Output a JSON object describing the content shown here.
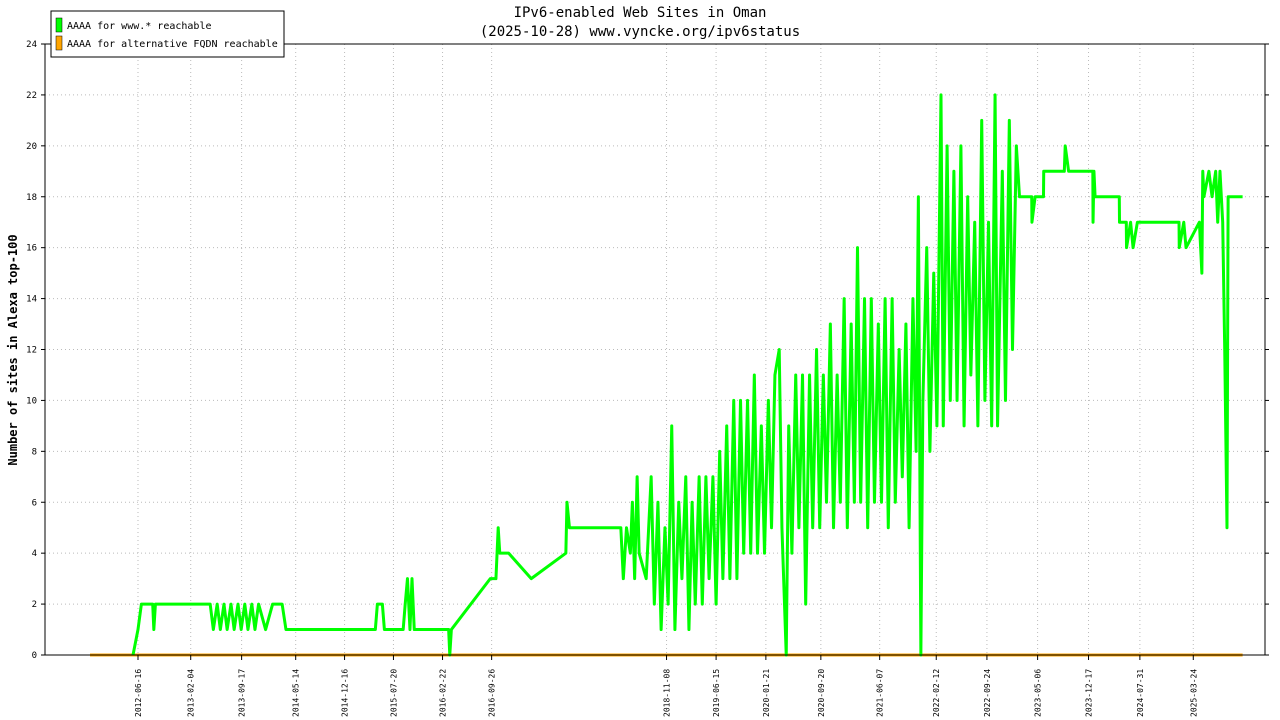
{
  "chart_data": {
    "type": "line",
    "title": "IPv6-enabled Web Sites in Oman",
    "subtitle": "(2025-10-28) www.vyncke.org/ipv6status",
    "y_label": "Number of sites in Alexa top-100",
    "legend": "upper left",
    "grid": true,
    "xlim": [
      "2011-05-02",
      "2026-02-04"
    ],
    "xticks": [
      "2012-06-16",
      "2013-02-04",
      "2013-09-17",
      "2014-05-14",
      "2014-12-16",
      "2015-07-20",
      "2016-02-22",
      "2016-09-26",
      "2018-11-08",
      "2019-06-15",
      "2020-01-21",
      "2020-09-20",
      "2021-06-07",
      "2022-02-12",
      "2022-09-24",
      "2023-05-06",
      "2023-12-17",
      "2024-07-31",
      "2025-03-24"
    ],
    "ylim": [
      0,
      24
    ],
    "yticks": [
      0,
      2,
      4,
      6,
      8,
      10,
      12,
      14,
      16,
      18,
      20,
      22,
      24
    ],
    "series": [
      {
        "name": "AAAA for www.* reachable",
        "color": "#00ff00",
        "x": [
          "2012-05-25",
          "2012-06-16",
          "2012-07-01",
          "2012-08-20",
          "2012-08-25",
          "2012-09-01",
          "2013-05-01",
          "2013-05-15",
          "2013-06-01",
          "2013-06-15",
          "2013-07-01",
          "2013-07-15",
          "2013-08-01",
          "2013-08-15",
          "2013-09-01",
          "2013-09-15",
          "2013-10-01",
          "2013-10-15",
          "2013-11-01",
          "2013-11-15",
          "2013-12-01",
          "2014-01-01",
          "2014-02-01",
          "2014-03-15",
          "2014-04-01",
          "2015-05-01",
          "2015-05-10",
          "2015-06-01",
          "2015-06-10",
          "2015-09-01",
          "2015-09-10",
          "2015-09-20",
          "2015-10-01",
          "2015-10-10",
          "2015-10-20",
          "2016-03-20",
          "2016-03-25",
          "2016-04-01",
          "2016-09-20",
          "2016-10-15",
          "2016-10-25",
          "2016-11-01",
          "2016-12-10",
          "2017-03-20",
          "2017-08-20",
          "2017-08-25",
          "2017-09-05",
          "2018-04-20",
          "2018-05-01",
          "2018-05-15",
          "2018-06-01",
          "2018-06-10",
          "2018-06-20",
          "2018-07-01",
          "2018-07-10",
          "2018-08-10",
          "2018-09-01",
          "2018-09-15",
          "2018-10-01",
          "2018-10-15",
          "2018-11-01",
          "2018-11-15",
          "2018-12-01",
          "2018-12-15",
          "2019-01-01",
          "2019-01-15",
          "2019-02-01",
          "2019-02-15",
          "2019-03-01",
          "2019-03-15",
          "2019-04-01",
          "2019-04-15",
          "2019-05-01",
          "2019-05-15",
          "2019-06-01",
          "2019-06-15",
          "2019-07-01",
          "2019-07-15",
          "2019-08-01",
          "2019-08-15",
          "2019-09-01",
          "2019-09-15",
          "2019-10-01",
          "2019-10-15",
          "2019-11-01",
          "2019-11-15",
          "2019-12-01",
          "2019-12-15",
          "2020-01-01",
          "2020-01-15",
          "2020-02-01",
          "2020-02-15",
          "2020-03-01",
          "2020-03-20",
          "2020-04-01",
          "2020-04-20",
          "2020-05-01",
          "2020-05-15",
          "2020-06-01",
          "2020-06-15",
          "2020-07-01",
          "2020-07-15",
          "2020-08-01",
          "2020-08-15",
          "2020-09-01",
          "2020-09-15",
          "2020-10-01",
          "2020-10-15",
          "2020-11-01",
          "2020-11-15",
          "2020-12-01",
          "2020-12-15",
          "2021-01-01",
          "2021-01-15",
          "2021-02-01",
          "2021-02-15",
          "2021-03-01",
          "2021-03-15",
          "2021-04-01",
          "2021-04-15",
          "2021-05-01",
          "2021-05-15",
          "2021-06-01",
          "2021-06-15",
          "2021-07-01",
          "2021-07-15",
          "2021-08-01",
          "2021-08-15",
          "2021-09-01",
          "2021-09-15",
          "2021-10-01",
          "2021-10-15",
          "2021-11-01",
          "2021-11-15",
          "2021-11-25",
          "2021-12-06",
          "2021-12-15",
          "2022-01-01",
          "2022-01-15",
          "2022-02-01",
          "2022-02-15",
          "2022-03-05",
          "2022-03-15",
          "2022-04-01",
          "2022-04-15",
          "2022-05-01",
          "2022-05-15",
          "2022-06-01",
          "2022-06-15",
          "2022-07-01",
          "2022-07-15",
          "2022-08-01",
          "2022-08-15",
          "2022-09-01",
          "2022-09-15",
          "2022-10-01",
          "2022-10-15",
          "2022-10-30",
          "2022-11-10",
          "2022-12-01",
          "2022-12-15",
          "2023-01-01",
          "2023-01-15",
          "2023-02-01",
          "2023-02-15",
          "2023-03-01",
          "2023-04-10",
          "2023-04-11",
          "2023-04-25",
          "2023-06-01",
          "2023-06-02",
          "2023-09-01",
          "2023-09-05",
          "2023-09-20",
          "2024-01-05",
          "2024-01-06",
          "2024-01-10",
          "2024-01-15",
          "2024-05-01",
          "2024-05-02",
          "2024-06-01",
          "2024-06-02",
          "2024-06-20",
          "2024-07-01",
          "2024-07-20",
          "2025-01-20",
          "2025-01-21",
          "2025-02-10",
          "2025-02-20",
          "2025-04-20",
          "2025-05-01",
          "2025-05-05",
          "2025-05-10",
          "2025-06-01",
          "2025-06-15",
          "2025-07-01",
          "2025-07-10",
          "2025-07-20",
          "2025-08-01",
          "2025-08-10",
          "2025-08-20",
          "2025-08-25",
          "2025-10-28"
        ],
        "values": [
          0,
          1,
          2,
          2,
          1,
          2,
          2,
          1,
          2,
          1,
          2,
          1,
          2,
          1,
          2,
          1,
          2,
          1,
          2,
          1,
          2,
          1,
          2,
          2,
          1,
          1,
          2,
          2,
          1,
          1,
          2,
          3,
          1,
          3,
          1,
          1,
          0,
          1,
          3,
          3,
          5,
          4,
          4,
          3,
          4,
          6,
          5,
          5,
          3,
          5,
          4,
          6,
          3,
          7,
          4,
          3,
          7,
          2,
          6,
          1,
          5,
          2,
          9,
          1,
          6,
          3,
          7,
          1,
          6,
          2,
          7,
          2,
          7,
          3,
          7,
          2,
          8,
          3,
          9,
          3,
          10,
          3,
          10,
          4,
          10,
          4,
          11,
          4,
          9,
          4,
          10,
          5,
          11,
          12,
          5,
          0,
          9,
          4,
          11,
          5,
          11,
          2,
          11,
          5,
          12,
          5,
          11,
          6,
          13,
          5,
          11,
          6,
          14,
          5,
          13,
          6,
          16,
          6,
          14,
          5,
          14,
          6,
          13,
          6,
          14,
          5,
          14,
          6,
          12,
          7,
          13,
          5,
          14,
          8,
          18,
          0,
          10,
          16,
          8,
          15,
          9,
          22,
          9,
          20,
          10,
          19,
          10,
          20,
          9,
          18,
          11,
          17,
          9,
          21,
          10,
          17,
          9,
          22,
          9,
          19,
          10,
          21,
          12,
          20,
          18,
          18,
          18,
          17,
          18,
          18,
          19,
          19,
          20,
          19,
          19,
          17,
          19,
          18,
          18,
          17,
          17,
          16,
          17,
          16,
          17,
          17,
          16,
          17,
          16,
          17,
          15,
          19,
          18,
          19,
          18,
          19,
          17,
          19,
          17,
          12,
          5,
          18,
          18
        ]
      },
      {
        "name": "AAAA for alternative FQDN reachable",
        "color": "#ffa500",
        "x": [
          "2011-11-17",
          "2025-10-28"
        ],
        "values": [
          0,
          0
        ]
      }
    ]
  }
}
